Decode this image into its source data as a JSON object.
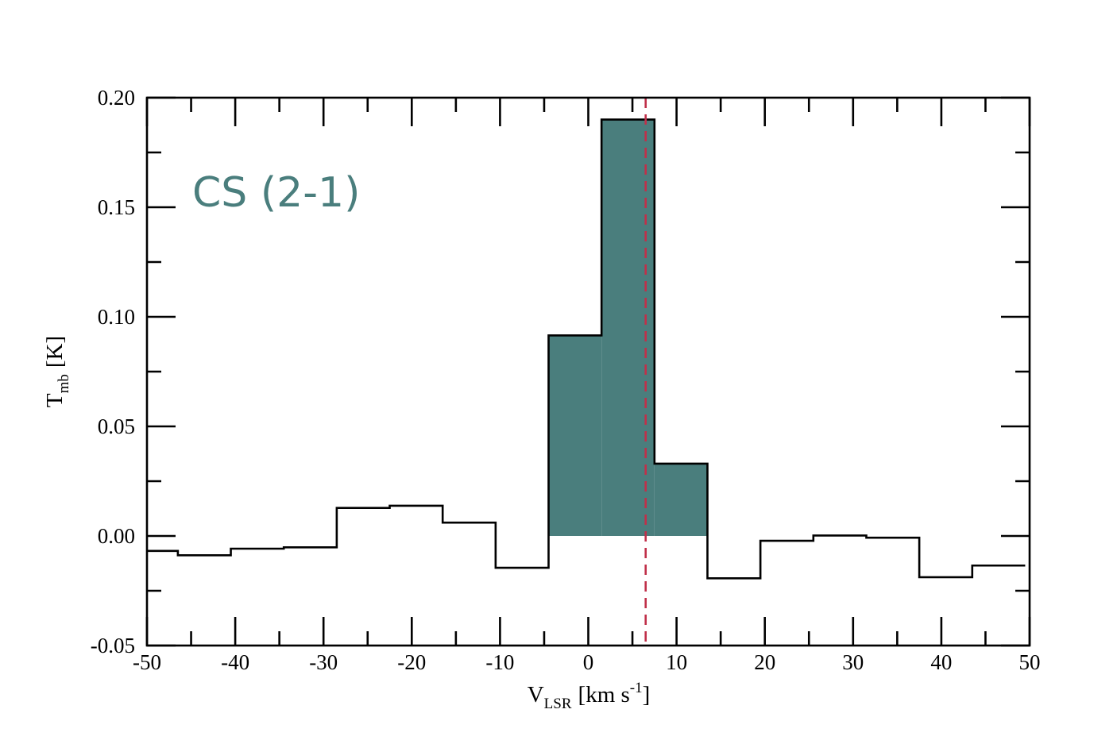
{
  "chart_data": {
    "type": "line",
    "style": "step",
    "xlabel": {
      "main": "V",
      "sub": "LSR",
      "unit": "[km s",
      "sup": "-1",
      "close": "]"
    },
    "ylabel": {
      "main": "T",
      "sub": "mb",
      "unit": "[K]"
    },
    "xlim": [
      -50,
      50
    ],
    "ylim": [
      -0.05,
      0.2
    ],
    "xticks": [
      "-50",
      "-40",
      "-30",
      "-20",
      "-10",
      "0",
      "10",
      "20",
      "30",
      "40",
      "50"
    ],
    "yticks": [
      "-0.05",
      "0.00",
      "0.05",
      "0.10",
      "0.15",
      "0.20"
    ],
    "annotation": {
      "text": "CS (2-1)",
      "color": "#4a7e7d"
    },
    "series": [
      {
        "line_color": "#000000",
        "fill_color": "#4a7e7d",
        "edges": [
          -50,
          -46.5,
          -40.5,
          -34.5,
          -28.5,
          -22.5,
          -16.5,
          -10.5,
          -4.5,
          1.5,
          7.5,
          13.5,
          19.5,
          25.5,
          31.5,
          37.5,
          43.5,
          49.5
        ],
        "values": [
          -0.0068,
          -0.0088,
          -0.0058,
          -0.0052,
          0.0128,
          0.0138,
          0.0061,
          -0.0145,
          0.0915,
          0.19,
          0.033,
          -0.0193,
          -0.0022,
          0.0002,
          -0.0008,
          -0.0188,
          -0.0135
        ],
        "filled_range": [
          -4.5,
          13.5
        ]
      }
    ],
    "reference_line": {
      "x": 6.5,
      "color": "#c0304a",
      "style": "dashed"
    }
  }
}
